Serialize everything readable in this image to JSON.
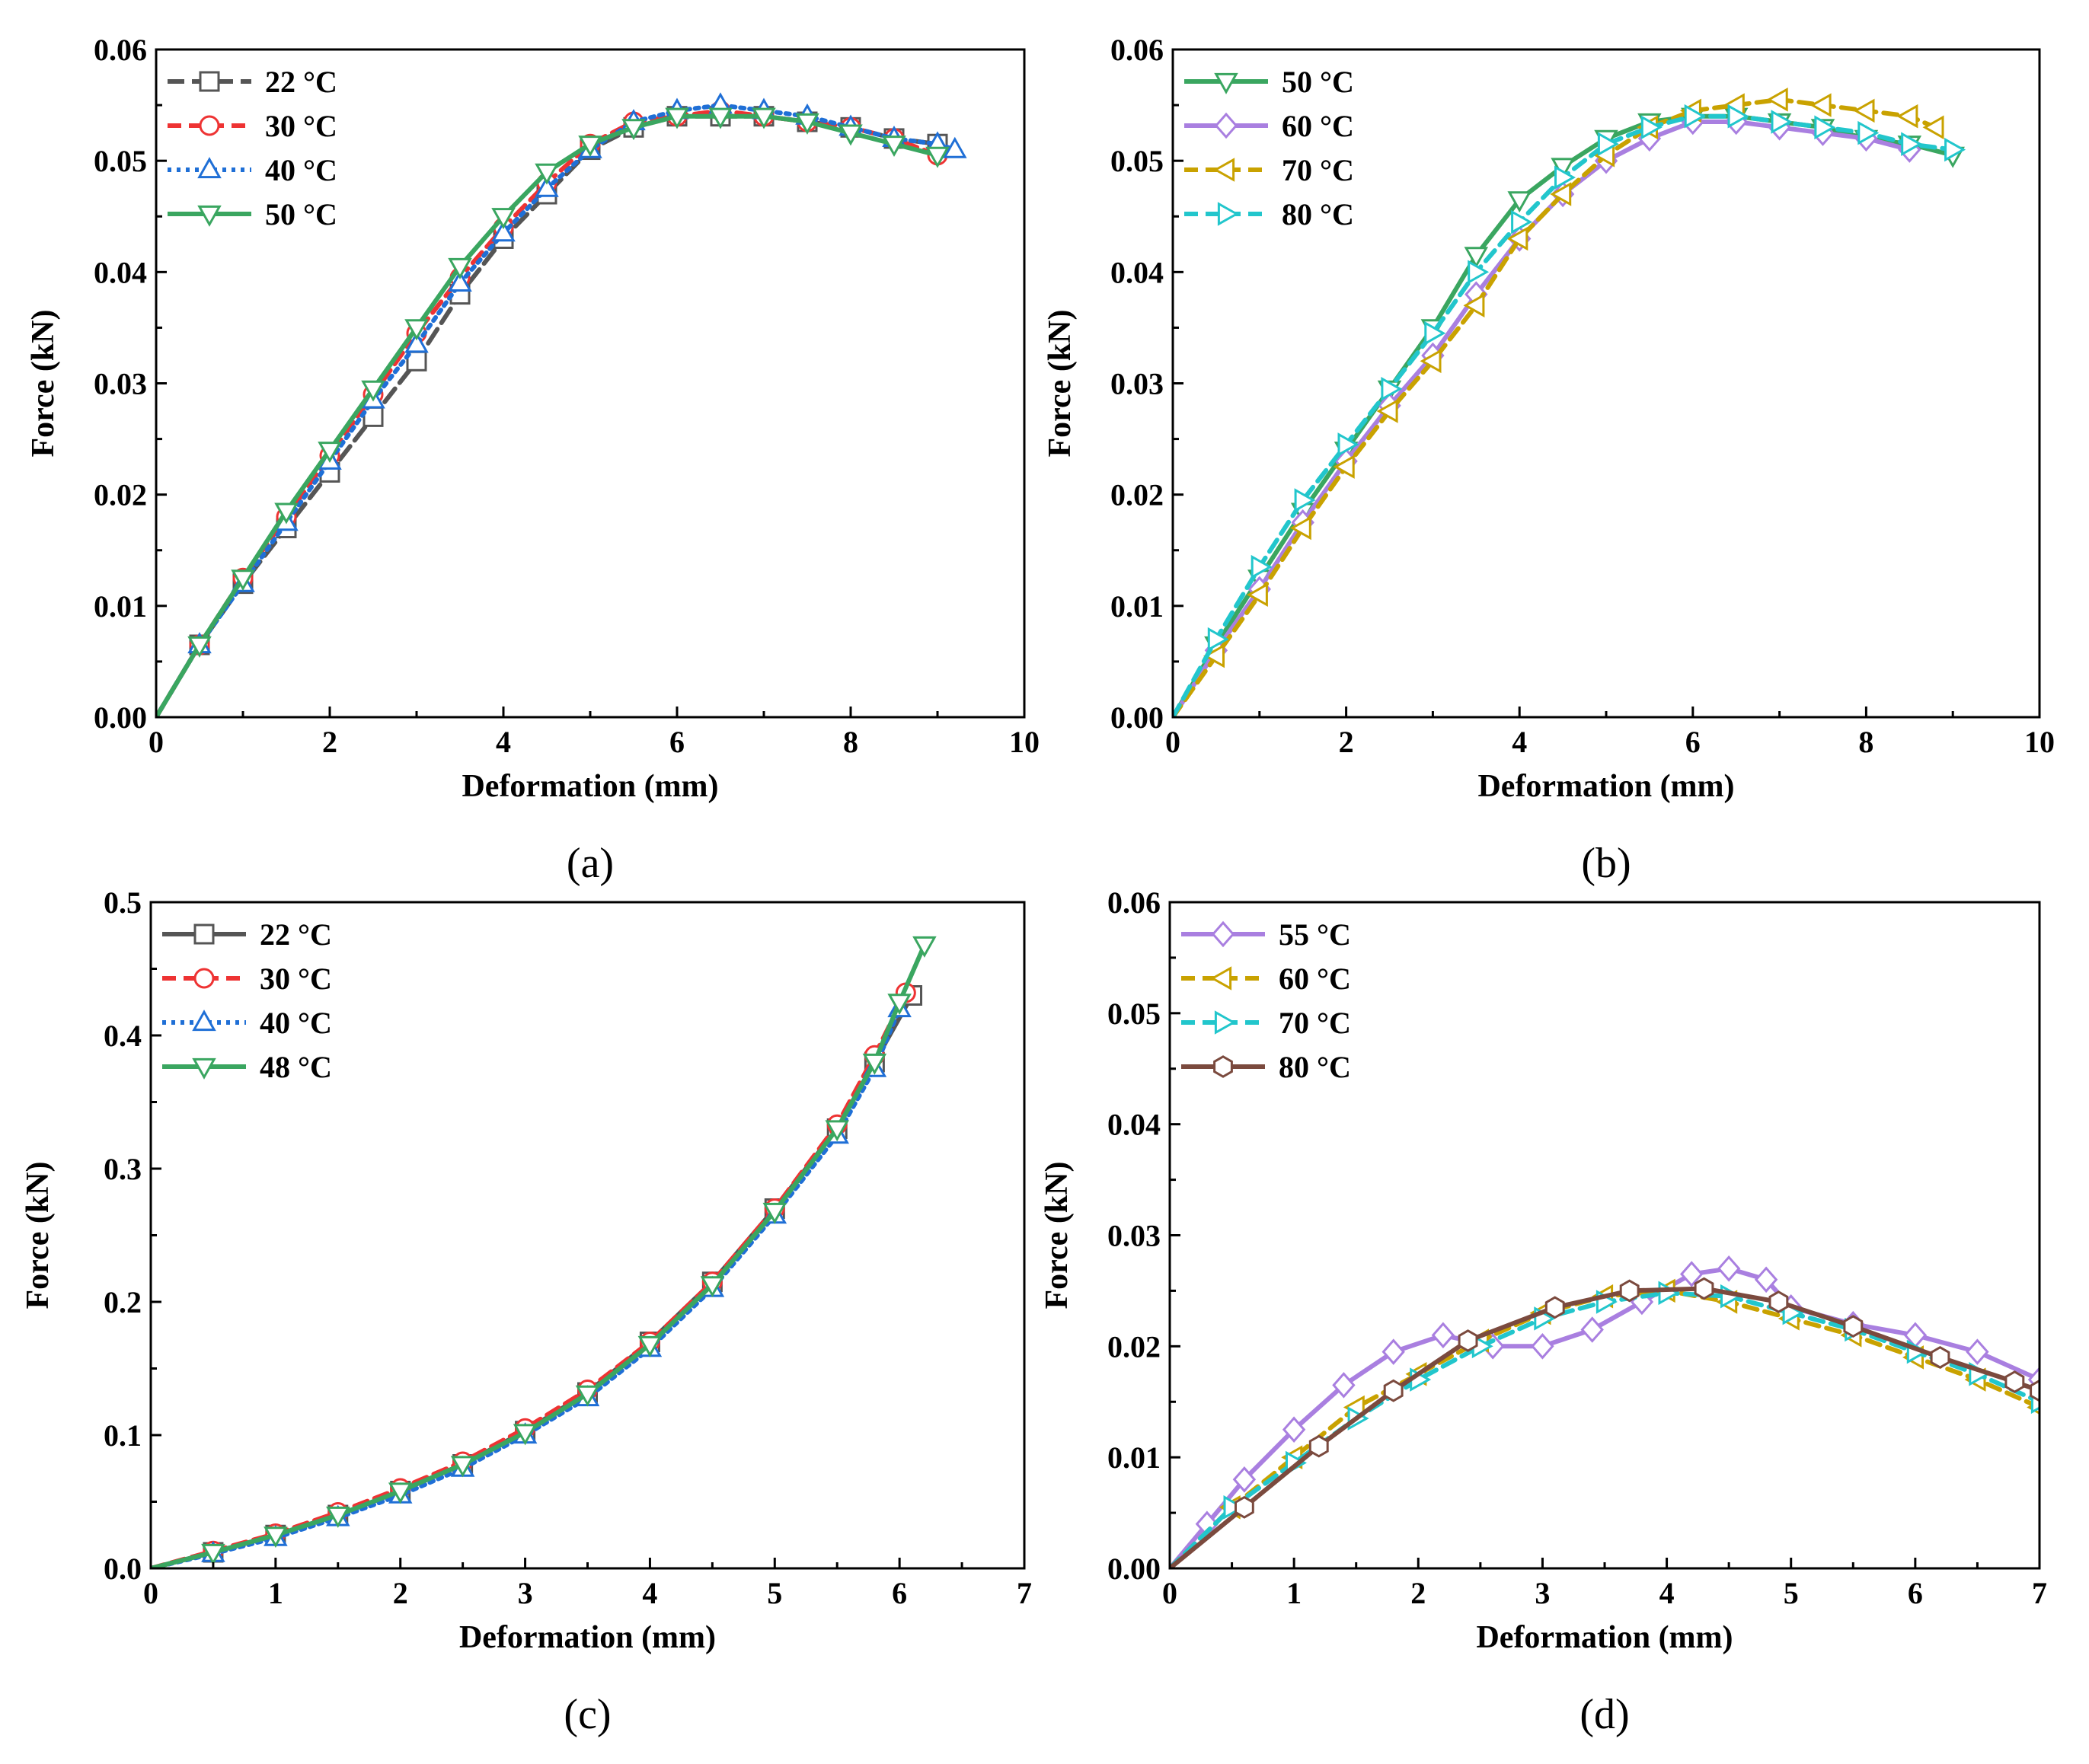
{
  "chart_data": [
    {
      "type": "line",
      "panel_label": "(a)",
      "xlabel": "Deformation (mm)",
      "ylabel": "Force (kN)",
      "xlim": [
        0,
        10
      ],
      "ylim": [
        0,
        0.06
      ],
      "xticks": [
        "0",
        "2",
        "4",
        "6",
        "8",
        "10"
      ],
      "yticks": [
        "0.00",
        "0.01",
        "0.02",
        "0.03",
        "0.04",
        "0.05",
        "0.06"
      ],
      "legend_position": "top-left",
      "series": [
        {
          "name": "22 °C",
          "color": "#555555",
          "marker": "square",
          "dash": "long",
          "x": [
            0,
            0.5,
            1.0,
            1.5,
            2.0,
            2.5,
            3.0,
            3.5,
            4.0,
            4.5,
            5.0,
            5.5,
            6.0,
            6.5,
            7.0,
            7.5,
            8.0,
            8.5,
            9.0
          ],
          "y": [
            0,
            0.0065,
            0.012,
            0.017,
            0.022,
            0.027,
            0.032,
            0.038,
            0.043,
            0.047,
            0.051,
            0.053,
            0.054,
            0.054,
            0.054,
            0.0535,
            0.053,
            0.052,
            0.0515
          ]
        },
        {
          "name": "30 °C",
          "color": "#ee3333",
          "marker": "circle",
          "dash": "dash",
          "x": [
            0,
            0.5,
            1.0,
            1.5,
            2.0,
            2.5,
            3.0,
            3.5,
            4.0,
            4.5,
            5.0,
            5.5,
            6.0,
            6.5,
            7.0,
            7.5,
            8.0,
            8.5,
            9.0
          ],
          "y": [
            0,
            0.0065,
            0.0125,
            0.018,
            0.0235,
            0.029,
            0.0345,
            0.0395,
            0.044,
            0.048,
            0.0515,
            0.0535,
            0.054,
            0.0545,
            0.054,
            0.0535,
            0.053,
            0.052,
            0.0505
          ]
        },
        {
          "name": "40 °C",
          "color": "#1f6fd6",
          "marker": "triangle-up",
          "dash": "dot",
          "x": [
            0,
            0.5,
            1.0,
            1.5,
            2.0,
            2.5,
            3.0,
            3.5,
            4.0,
            4.5,
            5.0,
            5.5,
            6.0,
            6.5,
            7.0,
            7.5,
            8.0,
            8.5,
            9.0,
            9.2
          ],
          "y": [
            0,
            0.0065,
            0.012,
            0.0175,
            0.023,
            0.0285,
            0.0335,
            0.039,
            0.0435,
            0.0475,
            0.051,
            0.0535,
            0.0545,
            0.055,
            0.0545,
            0.054,
            0.053,
            0.052,
            0.0515,
            0.051
          ]
        },
        {
          "name": "50 °C",
          "color": "#3aa660",
          "marker": "triangle-down",
          "dash": "solid",
          "x": [
            0,
            0.5,
            1.0,
            1.5,
            2.0,
            2.5,
            3.0,
            3.5,
            4.0,
            4.5,
            5.0,
            5.5,
            6.0,
            6.5,
            7.0,
            7.5,
            8.0,
            8.5,
            9.0
          ],
          "y": [
            0,
            0.0065,
            0.0125,
            0.0185,
            0.024,
            0.0295,
            0.035,
            0.0405,
            0.045,
            0.049,
            0.0515,
            0.053,
            0.054,
            0.054,
            0.054,
            0.0535,
            0.0525,
            0.0515,
            0.0505
          ]
        }
      ]
    },
    {
      "type": "line",
      "panel_label": "(b)",
      "xlabel": "Deformation (mm)",
      "ylabel": "Force (kN)",
      "xlim": [
        0,
        10
      ],
      "ylim": [
        0,
        0.06
      ],
      "xticks": [
        "0",
        "2",
        "4",
        "6",
        "8",
        "10"
      ],
      "yticks": [
        "0.00",
        "0.01",
        "0.02",
        "0.03",
        "0.04",
        "0.05",
        "0.06"
      ],
      "legend_position": "top-left",
      "series": [
        {
          "name": "50 °C",
          "color": "#3aa660",
          "marker": "triangle-down",
          "dash": "solid",
          "x": [
            0,
            0.5,
            1.0,
            1.5,
            2.0,
            2.5,
            3.0,
            3.5,
            4.0,
            4.5,
            5.0,
            5.5,
            6.0,
            6.5,
            7.0,
            7.5,
            8.0,
            8.5,
            9.0
          ],
          "y": [
            0,
            0.0065,
            0.0125,
            0.0185,
            0.024,
            0.0295,
            0.035,
            0.0415,
            0.0465,
            0.0495,
            0.052,
            0.0535,
            0.054,
            0.054,
            0.0535,
            0.053,
            0.052,
            0.0515,
            0.0505
          ]
        },
        {
          "name": "60 °C",
          "color": "#a97fe0",
          "marker": "diamond",
          "dash": "solid",
          "x": [
            0,
            0.5,
            1.0,
            1.5,
            2.0,
            2.5,
            3.0,
            3.5,
            4.0,
            4.5,
            5.0,
            5.5,
            6.0,
            6.5,
            7.0,
            7.5,
            8.0,
            8.5
          ],
          "y": [
            0,
            0.006,
            0.0115,
            0.0175,
            0.023,
            0.028,
            0.0325,
            0.038,
            0.043,
            0.047,
            0.05,
            0.052,
            0.0535,
            0.0535,
            0.053,
            0.0525,
            0.052,
            0.051
          ]
        },
        {
          "name": "70 °C",
          "color": "#c9a200",
          "marker": "triangle-left",
          "dash": "dash",
          "x": [
            0,
            0.5,
            1.0,
            1.5,
            2.0,
            2.5,
            3.0,
            3.5,
            4.0,
            4.5,
            5.0,
            5.5,
            6.0,
            6.5,
            7.0,
            7.5,
            8.0,
            8.5,
            8.8
          ],
          "y": [
            0,
            0.0055,
            0.011,
            0.017,
            0.0225,
            0.0275,
            0.032,
            0.037,
            0.043,
            0.047,
            0.0505,
            0.053,
            0.0545,
            0.055,
            0.0555,
            0.055,
            0.0545,
            0.054,
            0.053
          ]
        },
        {
          "name": "80 °C",
          "color": "#22c6cc",
          "marker": "triangle-right",
          "dash": "dash",
          "x": [
            0,
            0.5,
            1.0,
            1.5,
            2.0,
            2.5,
            3.0,
            3.5,
            4.0,
            4.5,
            5.0,
            5.5,
            6.0,
            6.5,
            7.0,
            7.5,
            8.0,
            8.5,
            9.0
          ],
          "y": [
            0,
            0.007,
            0.0135,
            0.0195,
            0.0245,
            0.0295,
            0.0345,
            0.04,
            0.0445,
            0.0485,
            0.0515,
            0.053,
            0.054,
            0.054,
            0.0535,
            0.053,
            0.0525,
            0.0515,
            0.051
          ]
        }
      ]
    },
    {
      "type": "line",
      "panel_label": "(c)",
      "xlabel": "Deformation (mm)",
      "ylabel": "Force (kN)",
      "xlim": [
        0,
        7
      ],
      "ylim": [
        0,
        0.5
      ],
      "xticks": [
        "0",
        "1",
        "2",
        "3",
        "4",
        "5",
        "6",
        "7"
      ],
      "yticks": [
        "0.0",
        "0.1",
        "0.2",
        "0.3",
        "0.4",
        "0.5"
      ],
      "legend_position": "top-left",
      "series": [
        {
          "name": "22 °C",
          "color": "#555555",
          "marker": "square",
          "dash": "solid",
          "x": [
            0,
            0.5,
            1.0,
            1.5,
            2.0,
            2.5,
            3.0,
            3.5,
            4.0,
            4.5,
            5.0,
            5.5,
            5.8,
            6.1
          ],
          "y": [
            0,
            0.012,
            0.025,
            0.04,
            0.058,
            0.078,
            0.103,
            0.132,
            0.17,
            0.215,
            0.27,
            0.33,
            0.38,
            0.43
          ]
        },
        {
          "name": "30 °C",
          "color": "#ee3333",
          "marker": "circle",
          "dash": "dash",
          "x": [
            0,
            0.5,
            1.0,
            1.5,
            2.0,
            2.5,
            3.0,
            3.5,
            4.0,
            4.5,
            5.0,
            5.5,
            5.8,
            6.05
          ],
          "y": [
            0,
            0.013,
            0.026,
            0.042,
            0.06,
            0.08,
            0.105,
            0.134,
            0.17,
            0.215,
            0.27,
            0.333,
            0.385,
            0.432
          ]
        },
        {
          "name": "40 °C",
          "color": "#1f6fd6",
          "marker": "triangle-up",
          "dash": "dot",
          "x": [
            0,
            0.5,
            1.0,
            1.5,
            2.0,
            2.5,
            3.0,
            3.5,
            4.0,
            4.5,
            5.0,
            5.5,
            5.8,
            6.0
          ],
          "y": [
            0,
            0.011,
            0.023,
            0.038,
            0.055,
            0.075,
            0.1,
            0.128,
            0.165,
            0.21,
            0.265,
            0.325,
            0.375,
            0.42
          ]
        },
        {
          "name": "48 °C",
          "color": "#3aa660",
          "marker": "triangle-down",
          "dash": "solid",
          "x": [
            0,
            0.5,
            1.0,
            1.5,
            2.0,
            2.5,
            3.0,
            3.5,
            4.0,
            4.5,
            5.0,
            5.5,
            5.8,
            6.0,
            6.2
          ],
          "y": [
            0,
            0.012,
            0.025,
            0.04,
            0.058,
            0.078,
            0.102,
            0.131,
            0.168,
            0.213,
            0.268,
            0.33,
            0.38,
            0.425,
            0.468
          ]
        }
      ]
    },
    {
      "type": "line",
      "panel_label": "(d)",
      "xlabel": "Deformation (mm)",
      "ylabel": "Force (kN)",
      "xlim": [
        0,
        7
      ],
      "ylim": [
        0,
        0.06
      ],
      "xticks": [
        "0",
        "1",
        "2",
        "3",
        "4",
        "5",
        "6",
        "7"
      ],
      "yticks": [
        "0.00",
        "0.01",
        "0.02",
        "0.03",
        "0.04",
        "0.05",
        "0.06"
      ],
      "legend_position": "top-left",
      "series": [
        {
          "name": "55 °C",
          "color": "#a97fe0",
          "marker": "diamond",
          "dash": "solid",
          "x": [
            0,
            0.3,
            0.6,
            1.0,
            1.4,
            1.8,
            2.2,
            2.6,
            3.0,
            3.4,
            3.8,
            4.2,
            4.5,
            4.8,
            5.0,
            5.5,
            6.0,
            6.5,
            7.0
          ],
          "y": [
            0,
            0.004,
            0.008,
            0.0125,
            0.0165,
            0.0195,
            0.021,
            0.02,
            0.02,
            0.0215,
            0.024,
            0.0265,
            0.027,
            0.026,
            0.0235,
            0.022,
            0.021,
            0.0195,
            0.017
          ]
        },
        {
          "name": "60 °C",
          "color": "#c9a200",
          "marker": "triangle-left",
          "dash": "dash",
          "x": [
            0,
            0.5,
            1.0,
            1.5,
            2.0,
            2.5,
            3.0,
            3.5,
            4.0,
            4.5,
            5.0,
            5.5,
            6.0,
            6.5,
            7.0
          ],
          "y": [
            0,
            0.0055,
            0.01,
            0.0145,
            0.0175,
            0.0205,
            0.023,
            0.0245,
            0.025,
            0.024,
            0.0225,
            0.021,
            0.019,
            0.017,
            0.0145
          ]
        },
        {
          "name": "70 °C",
          "color": "#22c6cc",
          "marker": "triangle-right",
          "dash": "dash",
          "x": [
            0,
            0.5,
            1.0,
            1.5,
            2.0,
            2.5,
            3.0,
            3.5,
            4.0,
            4.5,
            5.0,
            5.5,
            6.0,
            6.5,
            7.0
          ],
          "y": [
            0,
            0.0055,
            0.0095,
            0.0135,
            0.017,
            0.02,
            0.0225,
            0.024,
            0.0248,
            0.0245,
            0.023,
            0.0215,
            0.0195,
            0.0175,
            0.015
          ]
        },
        {
          "name": "80 °C",
          "color": "#7b4a3e",
          "marker": "hexagon",
          "dash": "solid",
          "x": [
            0,
            0.6,
            1.2,
            1.8,
            2.4,
            3.1,
            3.7,
            4.3,
            4.9,
            5.5,
            6.2,
            6.8,
            7.0
          ],
          "y": [
            0,
            0.0055,
            0.011,
            0.016,
            0.0205,
            0.0235,
            0.025,
            0.0252,
            0.024,
            0.0218,
            0.019,
            0.0168,
            0.016
          ]
        }
      ]
    }
  ]
}
